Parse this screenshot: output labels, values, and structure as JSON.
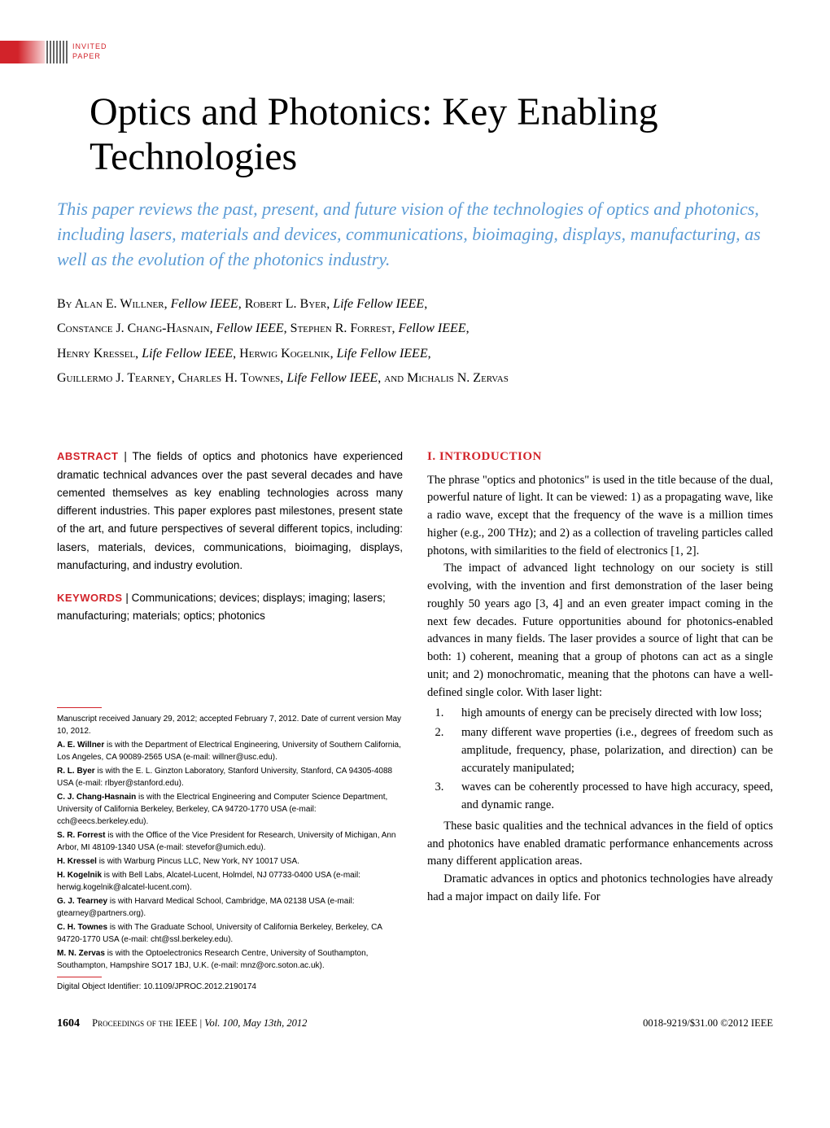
{
  "badge": {
    "line1": "INVITED",
    "line2": "PAPER"
  },
  "title": "Optics and Photonics: Key Enabling Technologies",
  "subtitle": "This paper reviews the past, present, and future vision of the technologies of optics and photonics, including lasers, materials and devices, communications, bioimaging, displays, manufacturing, as well as the evolution of the photonics industry.",
  "authors_html": "By Alan E. Willner, <span class=\"role\">Fellow IEEE</span>, Robert L. Byer, <span class=\"role\">Life Fellow IEEE</span>,<br>Constance J. Chang-Hasnain, <span class=\"role\">Fellow IEEE</span>, Stephen R. Forrest, <span class=\"role\">Fellow IEEE</span>,<br>Henry Kressel, <span class=\"role\">Life Fellow IEEE</span>, Herwig Kogelnik, <span class=\"role\">Life Fellow IEEE</span>,<br>Guillermo J. Tearney, Charles H. Townes, <span class=\"role\">Life Fellow IEEE</span>, and Michalis N. Zervas",
  "abstract": {
    "label": "ABSTRACT",
    "text": "The fields of optics and photonics have experienced dramatic technical advances over the past several decades and have cemented themselves as key enabling technologies across many different industries. This paper explores past milestones, present state of the art, and future perspectives of several different topics, including: lasers, materials, devices, communications, bioimaging, displays, manufacturing, and industry evolution."
  },
  "keywords": {
    "label": "KEYWORDS",
    "text": "Communications; devices; displays; imaging; lasers; manufacturing; materials; optics; photonics"
  },
  "affiliations": {
    "manuscript": "Manuscript received January 29, 2012; accepted February 7, 2012. Date of current version May 10, 2012.",
    "items": [
      {
        "who": "A. E. Willner",
        "text": " is with the Department of Electrical Engineering, University of Southern California, Los Angeles, CA 90089-2565 USA (e-mail: willner@usc.edu)."
      },
      {
        "who": "R. L. Byer",
        "text": " is with the E. L. Ginzton Laboratory, Stanford University, Stanford, CA 94305-4088 USA (e-mail: rlbyer@stanford.edu)."
      },
      {
        "who": "C. J. Chang-Hasnain",
        "text": " is with the Electrical Engineering and Computer Science Department, University of California Berkeley, Berkeley, CA 94720-1770 USA (e-mail: cch@eecs.berkeley.edu)."
      },
      {
        "who": "S. R. Forrest",
        "text": " is with the Office of the Vice President for Research, University of Michigan, Ann Arbor, MI 48109-1340 USA (e-mail: stevefor@umich.edu)."
      },
      {
        "who": "H. Kressel",
        "text": " is with Warburg Pincus LLC, New York, NY 10017 USA."
      },
      {
        "who": "H. Kogelnik",
        "text": " is with Bell Labs, Alcatel-Lucent, Holmdel, NJ 07733-0400 USA (e-mail: herwig.kogelnik@alcatel-lucent.com)."
      },
      {
        "who": "G. J. Tearney",
        "text": " is with Harvard Medical School, Cambridge, MA 02138 USA (e-mail: gtearney@partners.org)."
      },
      {
        "who": "C. H. Townes",
        "text": " is with The Graduate School, University of California Berkeley, Berkeley, CA 94720-1770 USA (e-mail: cht@ssl.berkeley.edu)."
      },
      {
        "who": "M. N. Zervas",
        "text": " is with the Optoelectronics Research Centre, University of Southampton, Southampton, Hampshire SO17 1BJ, U.K. (e-mail: mnz@orc.soton.ac.uk)."
      }
    ],
    "doi": "Digital Object Identifier: 10.1109/JPROC.2012.2190174"
  },
  "section": {
    "head": "I. INTRODUCTION",
    "p1": "The phrase \"optics and photonics\" is used in the title because of the dual, powerful nature of light. It can be viewed: 1) as a propagating wave, like a radio wave, except that the frequency of the wave is a million times higher (e.g., 200 THz); and 2) as a collection of traveling particles called photons, with similarities to the field of electronics [1, 2].",
    "p2": "The impact of advanced light technology on our society is still evolving, with the invention and first demonstration of the laser being roughly 50 years ago [3, 4] and an even greater impact coming in the next few decades. Future opportunities abound for photonics-enabled advances in many fields. The laser provides a source of light that can be both: 1) coherent, meaning that a group of photons can act as a single unit; and 2) monochromatic, meaning that the photons can have a well-defined single color. With laser light:",
    "list": [
      "high amounts of energy can be precisely directed with low loss;",
      "many different wave properties (i.e., degrees of freedom such as amplitude, frequency, phase, polarization, and direction) can be accurately manipulated;",
      "waves can be coherently processed to have high accuracy, speed, and dynamic range."
    ],
    "p3": "These basic qualities and the technical advances in the field of optics and photonics have enabled dramatic performance enhancements across many different application areas.",
    "p4": "Dramatic advances in optics and photonics technologies have already had a major impact on daily life. For"
  },
  "footer": {
    "page": "1604",
    "journal": "Proceedings of the IEEE",
    "issue": "Vol. 100, May 13th, 2012",
    "copyright": "0018-9219/$31.00 ©2012 IEEE"
  },
  "colors": {
    "accent_red": "#d2232a",
    "accent_blue": "#5b9bd5",
    "text": "#000000",
    "background": "#ffffff"
  },
  "typography": {
    "title_pt": 48,
    "subtitle_pt": 22,
    "author_pt": 16,
    "body_pt": 14.5,
    "abstract_pt": 13.5,
    "affil_pt": 10,
    "footer_pt": 12.5
  }
}
